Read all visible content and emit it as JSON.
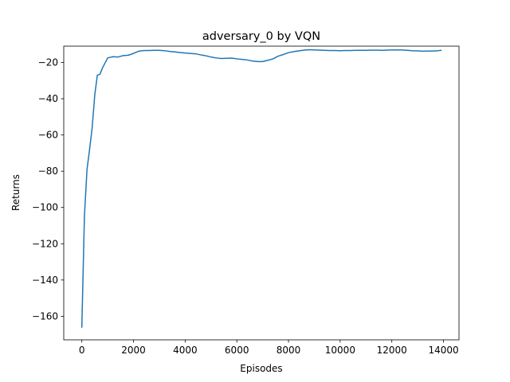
{
  "chart_data": {
    "type": "line",
    "title": "adversary_0 by VQN",
    "xlabel": "Episodes",
    "ylabel": "Returns",
    "xlim": [
      -700,
      14600
    ],
    "ylim": [
      -173,
      -11
    ],
    "xticks": [
      0,
      2000,
      4000,
      6000,
      8000,
      10000,
      12000,
      14000
    ],
    "xtick_labels": [
      "0",
      "2000",
      "4000",
      "6000",
      "8000",
      "10000",
      "12000",
      "14000"
    ],
    "yticks": [
      -20,
      -40,
      -60,
      -80,
      -100,
      -120,
      -140,
      -160
    ],
    "ytick_labels": [
      "−20",
      "−40",
      "−60",
      "−80",
      "−100",
      "−120",
      "−140",
      "−160"
    ],
    "grid": false,
    "line_color": "#1f77b4",
    "series": [
      {
        "x": [
          0,
          100,
          200,
          300,
          400,
          500,
          600,
          700,
          800,
          1000,
          1200,
          1400,
          1600,
          1800,
          2000,
          2200,
          2400,
          2600,
          2800,
          3000,
          3200,
          3400,
          3600,
          3800,
          4000,
          4200,
          4400,
          4600,
          4800,
          5000,
          5200,
          5400,
          5600,
          5800,
          6000,
          6200,
          6400,
          6600,
          6800,
          7000,
          7200,
          7400,
          7600,
          7800,
          8000,
          8200,
          8400,
          8600,
          8800,
          9000,
          9200,
          9400,
          9600,
          9800,
          10000,
          10200,
          10400,
          10600,
          10800,
          11000,
          11200,
          11400,
          11600,
          11800,
          12000,
          12200,
          12400,
          12600,
          12800,
          13000,
          13200,
          13400,
          13600,
          13800,
          13900
        ],
        "y": [
          -166,
          -105,
          -79,
          -68,
          -56,
          -38,
          -27,
          -26.5,
          -23,
          -17.5,
          -16.8,
          -17,
          -16.2,
          -16,
          -15,
          -13.8,
          -13.4,
          -13.4,
          -13.3,
          -13.3,
          -13.5,
          -13.9,
          -14.2,
          -14.5,
          -14.8,
          -15,
          -15.2,
          -15.8,
          -16.3,
          -17,
          -17.5,
          -17.8,
          -17.7,
          -17.6,
          -18,
          -18.3,
          -18.6,
          -19.2,
          -19.5,
          -19.5,
          -18.8,
          -18,
          -16.5,
          -15.6,
          -14.6,
          -14,
          -13.6,
          -13.2,
          -13,
          -13.1,
          -13.2,
          -13.3,
          -13.4,
          -13.4,
          -13.5,
          -13.4,
          -13.4,
          -13.3,
          -13.3,
          -13.3,
          -13.2,
          -13.2,
          -13.3,
          -13.2,
          -13.1,
          -13.1,
          -13.1,
          -13.3,
          -13.5,
          -13.6,
          -13.8,
          -13.7,
          -13.7,
          -13.5,
          -13.3
        ]
      }
    ]
  }
}
